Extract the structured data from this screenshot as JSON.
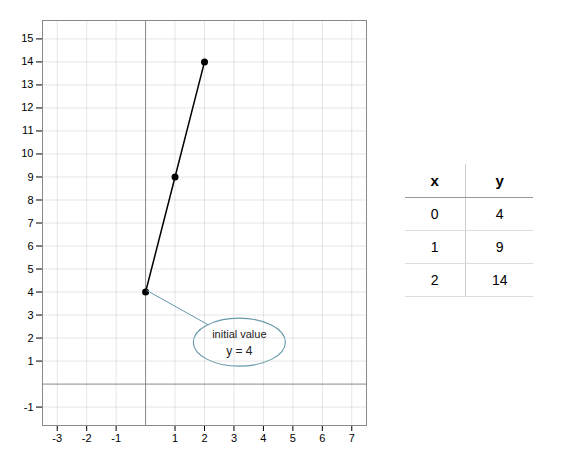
{
  "chart_data": {
    "type": "line",
    "x": [
      0,
      1,
      2
    ],
    "values": [
      4,
      9,
      14
    ],
    "marker": "o",
    "xlim": [
      -3.5,
      7.5
    ],
    "xticks": [
      -3,
      -2,
      -1,
      1,
      2,
      3,
      4,
      5,
      6,
      7
    ],
    "ylim": [
      -1.8,
      15.8
    ],
    "yticks": [
      -1,
      1,
      2,
      3,
      4,
      5,
      6,
      7,
      8,
      9,
      10,
      11,
      12,
      13,
      14,
      15
    ],
    "grid": true,
    "annotation": {
      "lines": [
        "initial value",
        "y = 4"
      ],
      "x": 3.2,
      "y": 1.8,
      "target": [
        0.05,
        4.05
      ]
    },
    "table": {
      "headers": [
        "x",
        "y"
      ],
      "rows": [
        [
          0,
          4
        ],
        [
          1,
          9
        ],
        [
          2,
          14
        ]
      ]
    }
  }
}
